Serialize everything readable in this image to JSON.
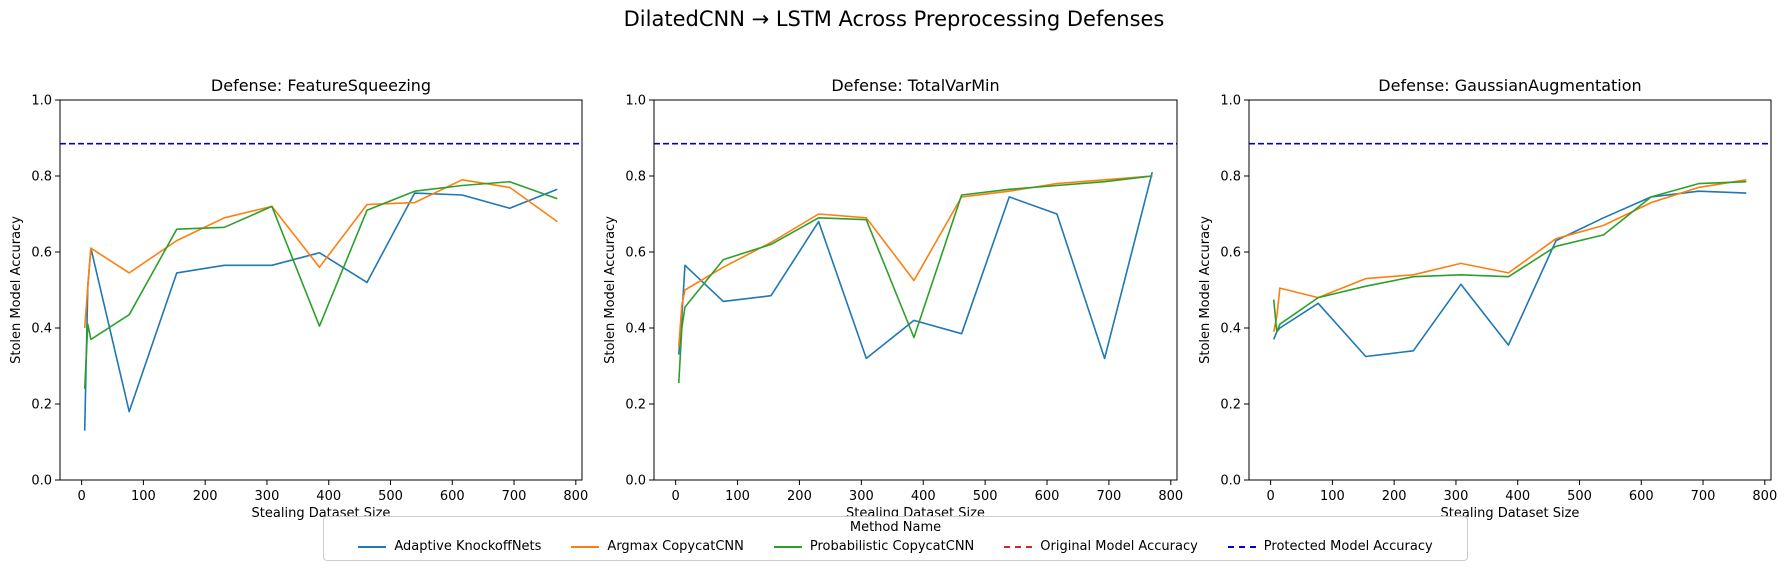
{
  "figure": {
    "title": "DilatedCNN → LSTM Across Preprocessing Defenses",
    "legend_title": "Method Name"
  },
  "legend": [
    {
      "name": "Adaptive KnockoffNets",
      "color": "#1f77b4",
      "style": "solid"
    },
    {
      "name": "Argmax CopycatCNN",
      "color": "#ff7f0e",
      "style": "solid"
    },
    {
      "name": "Probabilistic CopycatCNN",
      "color": "#2ca02c",
      "style": "solid"
    },
    {
      "name": "Original Model Accuracy",
      "color": "#d62728",
      "style": "dashed"
    },
    {
      "name": "Protected Model Accuracy",
      "color": "#0000cc",
      "style": "dashed"
    }
  ],
  "chart_data": [
    {
      "type": "line",
      "title": "Defense: FeatureSqueezing",
      "xlabel": "Stealing Dataset Size",
      "ylabel": "Stolen Model Accuracy",
      "xlim": [
        -35,
        810
      ],
      "ylim": [
        0,
        1.0
      ],
      "xticks": [
        0,
        100,
        200,
        300,
        400,
        500,
        600,
        700,
        800
      ],
      "yticks": [
        0.0,
        0.2,
        0.4,
        0.6,
        0.8,
        1.0
      ],
      "x": [
        5,
        10,
        15,
        77,
        154,
        231,
        308,
        385,
        462,
        539,
        616,
        693,
        770
      ],
      "series": [
        {
          "name": "Adaptive KnockoffNets",
          "values": [
            0.13,
            0.51,
            0.61,
            0.18,
            0.545,
            0.565,
            0.565,
            0.598,
            0.52,
            0.755,
            0.75,
            0.715,
            0.765
          ]
        },
        {
          "name": "Argmax CopycatCNN",
          "values": [
            0.4,
            0.51,
            0.61,
            0.545,
            0.63,
            0.69,
            0.72,
            0.56,
            0.725,
            0.73,
            0.79,
            0.77,
            0.68
          ]
        },
        {
          "name": "Probabilistic CopycatCNN",
          "values": [
            0.24,
            0.41,
            0.37,
            0.435,
            0.66,
            0.665,
            0.72,
            0.405,
            0.71,
            0.76,
            0.775,
            0.785,
            0.74
          ]
        }
      ],
      "reference_lines": [
        {
          "name": "Protected Model Accuracy",
          "value": 0.885
        }
      ]
    },
    {
      "type": "line",
      "title": "Defense: TotalVarMin",
      "xlabel": "Stealing Dataset Size",
      "ylabel": "Stolen Model Accuracy",
      "xlim": [
        -35,
        810
      ],
      "ylim": [
        0,
        1.0
      ],
      "xticks": [
        0,
        100,
        200,
        300,
        400,
        500,
        600,
        700,
        800
      ],
      "yticks": [
        0.0,
        0.2,
        0.4,
        0.6,
        0.8,
        1.0
      ],
      "x": [
        5,
        10,
        15,
        77,
        154,
        231,
        308,
        385,
        462,
        539,
        616,
        693,
        770
      ],
      "series": [
        {
          "name": "Adaptive KnockoffNets",
          "values": [
            0.33,
            0.43,
            0.565,
            0.47,
            0.485,
            0.68,
            0.32,
            0.42,
            0.385,
            0.745,
            0.7,
            0.32,
            0.81
          ]
        },
        {
          "name": "Argmax CopycatCNN",
          "values": [
            0.35,
            0.46,
            0.5,
            0.56,
            0.625,
            0.7,
            0.69,
            0.525,
            0.745,
            0.76,
            0.78,
            0.79,
            0.8
          ]
        },
        {
          "name": "Probabilistic CopycatCNN",
          "values": [
            0.255,
            0.4,
            0.455,
            0.58,
            0.62,
            0.69,
            0.685,
            0.375,
            0.75,
            0.765,
            0.775,
            0.785,
            0.8
          ]
        }
      ],
      "reference_lines": [
        {
          "name": "Protected Model Accuracy",
          "value": 0.885
        }
      ]
    },
    {
      "type": "line",
      "title": "Defense: GaussianAugmentation",
      "xlabel": "Stealing Dataset Size",
      "ylabel": "Stolen Model Accuracy",
      "xlim": [
        -35,
        810
      ],
      "ylim": [
        0,
        1.0
      ],
      "xticks": [
        0,
        100,
        200,
        300,
        400,
        500,
        600,
        700,
        800
      ],
      "yticks": [
        0.0,
        0.2,
        0.4,
        0.6,
        0.8,
        1.0
      ],
      "x": [
        5,
        10,
        15,
        77,
        154,
        231,
        308,
        385,
        462,
        539,
        616,
        693,
        770
      ],
      "series": [
        {
          "name": "Adaptive KnockoffNets",
          "values": [
            0.37,
            0.39,
            0.4,
            0.465,
            0.325,
            0.34,
            0.515,
            0.355,
            0.63,
            0.69,
            0.745,
            0.76,
            0.755
          ]
        },
        {
          "name": "Argmax CopycatCNN",
          "values": [
            0.39,
            0.43,
            0.505,
            0.48,
            0.53,
            0.54,
            0.57,
            0.545,
            0.635,
            0.67,
            0.73,
            0.77,
            0.79
          ]
        },
        {
          "name": "Probabilistic CopycatCNN",
          "values": [
            0.475,
            0.39,
            0.41,
            0.48,
            0.51,
            0.535,
            0.54,
            0.535,
            0.615,
            0.645,
            0.745,
            0.78,
            0.785
          ]
        }
      ],
      "reference_lines": [
        {
          "name": "Protected Model Accuracy",
          "value": 0.885
        }
      ]
    }
  ]
}
